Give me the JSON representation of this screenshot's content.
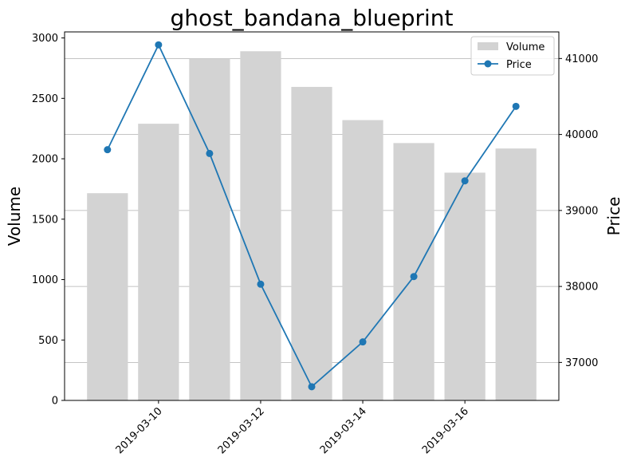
{
  "chart_data": {
    "type": "bar+line",
    "title": "ghost_bandana_blueprint",
    "dates": [
      "2019-03-09",
      "2019-03-10",
      "2019-03-11",
      "2019-03-12",
      "2019-03-13",
      "2019-03-14",
      "2019-03-15",
      "2019-03-16",
      "2019-03-17"
    ],
    "x_tick_labels": [
      "2019-03-10",
      "2019-03-12",
      "2019-03-14",
      "2019-03-16"
    ],
    "x_tick_rotation_deg": 45,
    "left_axis": {
      "label": "Volume",
      "ylim": [
        0,
        3050
      ],
      "ticks": [
        0,
        500,
        1000,
        1500,
        2000,
        2500,
        3000
      ]
    },
    "right_axis": {
      "label": "Price",
      "ylim": [
        36500,
        41350
      ],
      "ticks": [
        37000,
        38000,
        39000,
        40000,
        41000
      ],
      "grid": true
    },
    "series": [
      {
        "name": "Volume",
        "kind": "bar",
        "axis": "left",
        "color": "#d3d3d3",
        "values": [
          1715,
          2290,
          2830,
          2890,
          2595,
          2320,
          2130,
          1885,
          2085
        ]
      },
      {
        "name": "Price",
        "kind": "line",
        "axis": "right",
        "color": "#1f77b4",
        "marker": "circle",
        "values": [
          39800,
          41180,
          39750,
          38030,
          36680,
          37270,
          38130,
          39390,
          40370
        ]
      }
    ],
    "legend": {
      "placement": "top-right",
      "entries": [
        "Volume",
        "Price"
      ]
    }
  }
}
